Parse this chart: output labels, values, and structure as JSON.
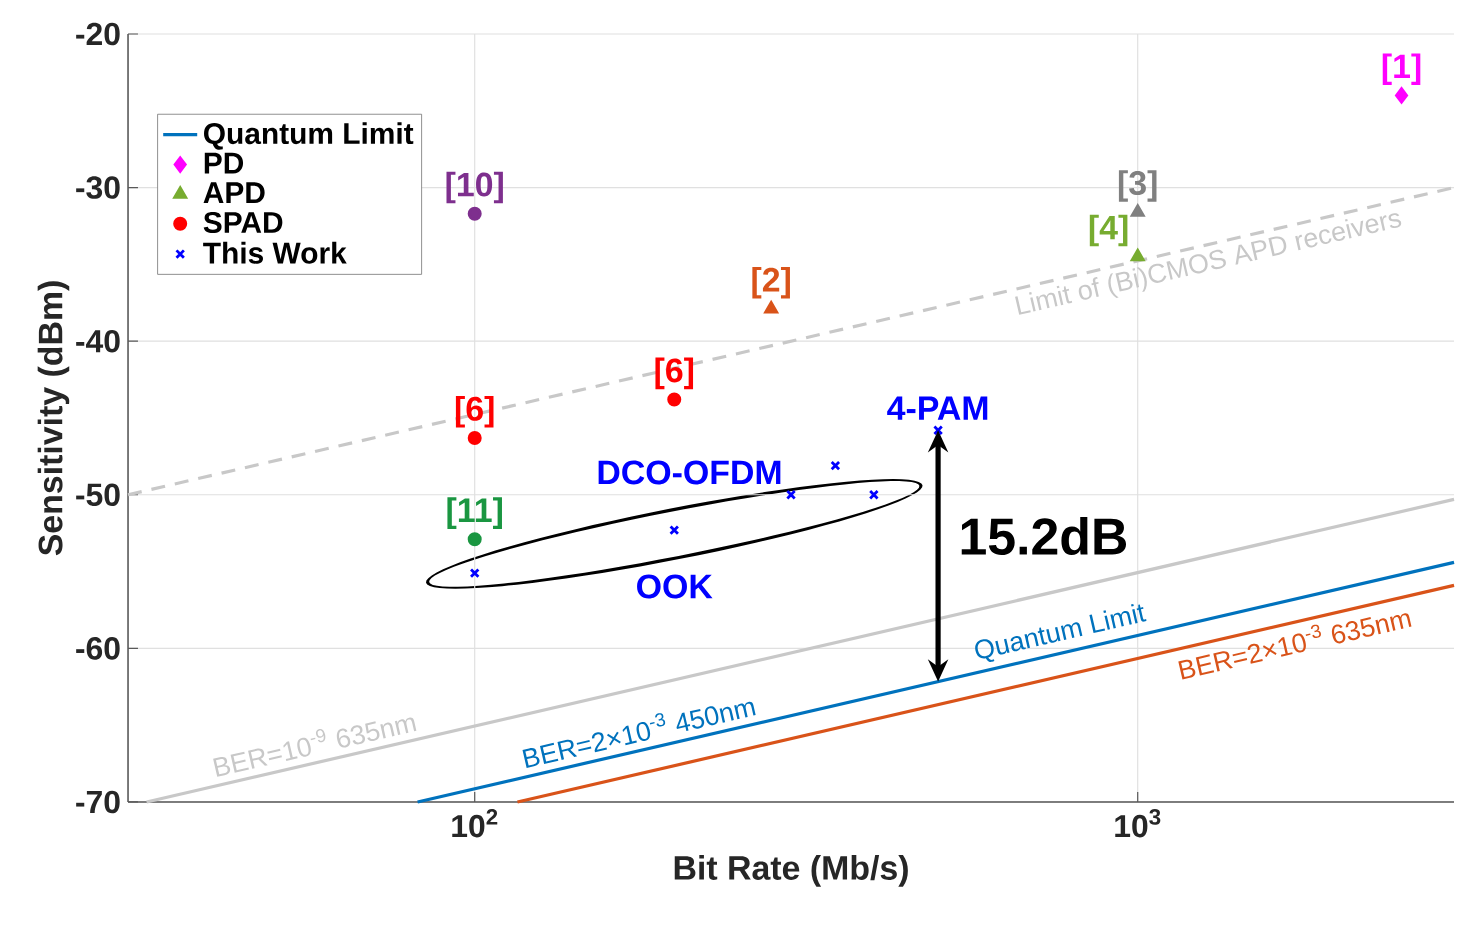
{
  "chart_data": {
    "type": "scatter",
    "xlabel": "Bit Rate (Mb/s)",
    "ylabel": "Sensitivity (dBm)",
    "log": "x",
    "xlim": [
      30,
      3000
    ],
    "ylim": [
      -70,
      -20
    ],
    "xticks": [
      {
        "value": 100,
        "label": "10$^{2}$"
      },
      {
        "value": 1000,
        "label": "10$^{3}$"
      }
    ],
    "yticks": [
      -70,
      -60,
      -50,
      -40,
      -30,
      -20
    ],
    "grid": true,
    "legend": "top left",
    "series": [
      {
        "name": "Quantum Limit",
        "type": "line",
        "color": "#0072bd",
        "x": [
          82,
          3000
        ],
        "values": [
          -70,
          -54.4
        ]
      },
      {
        "type": "line",
        "color": "#c8c8c8",
        "x": [
          32,
          3000
        ],
        "values": [
          -70,
          -50.3
        ]
      },
      {
        "type": "line",
        "color": "#d95319",
        "x": [
          116,
          3000
        ],
        "values": [
          -70,
          -55.9
        ]
      },
      {
        "type": "line",
        "color": "#c8c8c8",
        "line_style": "dashed",
        "x": [
          30,
          3000
        ],
        "values": [
          -50,
          -30
        ]
      },
      {
        "name": "PD",
        "marker": "diamond",
        "color": "#ff00ff",
        "x": [
          2500
        ],
        "values": [
          -24
        ]
      },
      {
        "name": "APD",
        "marker": "triangle",
        "color": "#77ac30",
        "x": [
          280,
          1000,
          1000
        ],
        "values": [
          -37.9,
          -31.6,
          -34.5
        ],
        "colors": [
          "#d95319",
          "#808080",
          "#77ac30"
        ]
      },
      {
        "name": "SPAD",
        "marker": "circle",
        "color": "#ff0000",
        "x": [
          100,
          100,
          200,
          100
        ],
        "values": [
          -31.7,
          -46.3,
          -43.8,
          -52.9
        ],
        "colors": [
          "#7e2f8e",
          "#ff0000",
          "#ff0000",
          "#1a9641"
        ]
      },
      {
        "name": "This Work",
        "marker": "cross",
        "color": "#0000ff",
        "x": [
          100,
          200,
          300,
          350,
          400,
          500
        ],
        "values": [
          -55.1,
          -52.3,
          -50,
          -48.1,
          -50,
          -45.8
        ]
      }
    ],
    "annotations": [
      {
        "text": "[1]",
        "x": 2500,
        "y": -24
      },
      {
        "text": "[10]",
        "x": 100,
        "y": -31.7
      },
      {
        "text": "[2]",
        "x": 280,
        "y": -37.9
      },
      {
        "text": "[3]",
        "x": 1000,
        "y": -31.6
      },
      {
        "text": "[4]",
        "x": 1000,
        "y": -34.5
      },
      {
        "text": "[6]",
        "x": 100,
        "y": -46.3
      },
      {
        "text": "[6]",
        "x": 200,
        "y": -43.8
      },
      {
        "text": "[11]",
        "x": 100,
        "y": -52.9
      },
      {
        "text": "4-PAM",
        "x": 500,
        "y": -45.8
      },
      {
        "text": "DCO-OFDM",
        "x": 300,
        "y": -50
      },
      {
        "text": "OOK",
        "x": 200,
        "y": -52.3
      },
      "15.2dB",
      {
        "text": "Limit of (Bi)CMOS APD receivers",
        "x": 1240,
        "y": -33.8
      },
      {
        "text": "BER=10$^{-9}$ 635nm",
        "x": 59,
        "y": -67.3
      },
      {
        "text": "BER=2×10$^{-3}$ 450nm",
        "x": 182,
        "y": -66.5
      },
      {
        "text": "Quantum Limit",
        "x": 787,
        "y": -60.2
      },
      {
        "text": "BER=2×10$^{-3}$ 635nm",
        "x": 1670,
        "y": -58.4
      }
    ]
  }
}
